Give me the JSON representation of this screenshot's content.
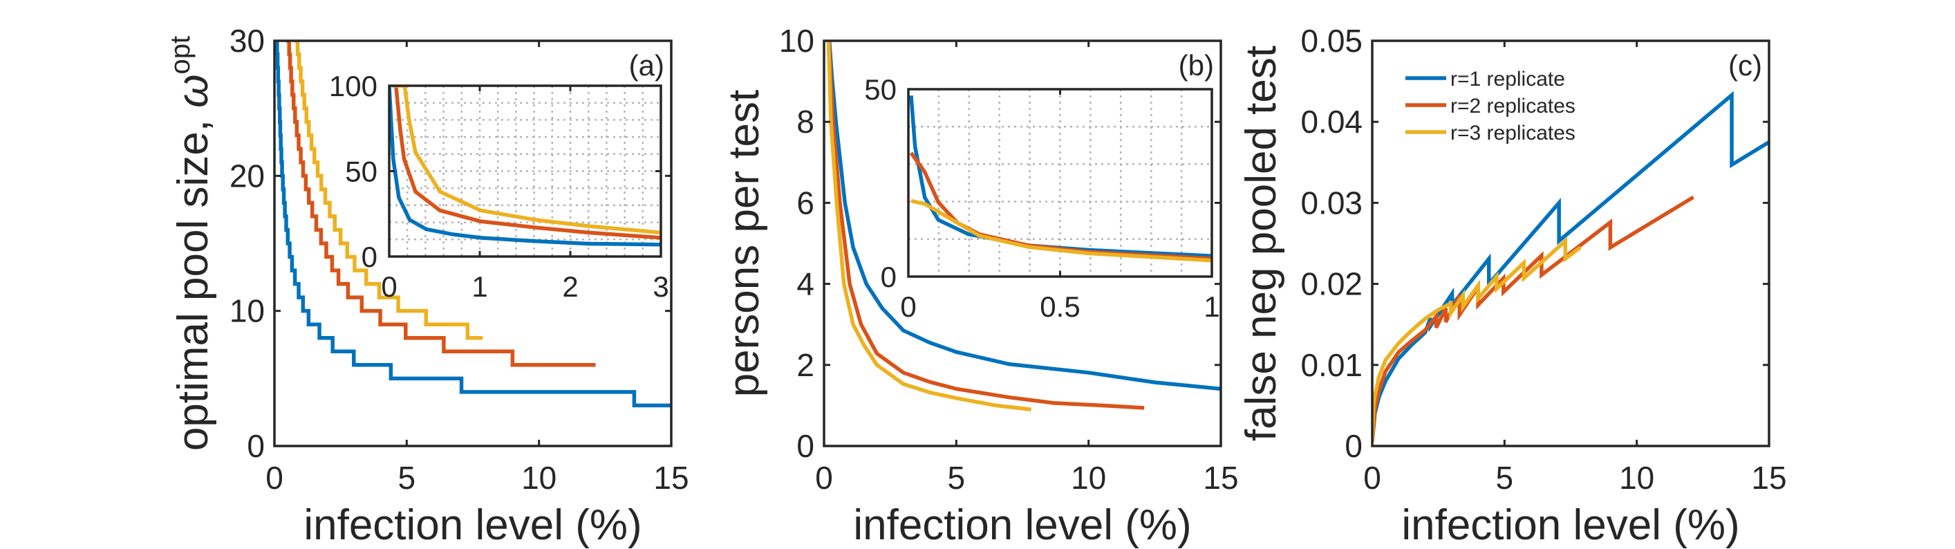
{
  "colors": {
    "r1": "#0072BD",
    "r2": "#D95319",
    "r3": "#EDB120",
    "axis": "#262626",
    "grid": "#b4b4b4"
  },
  "chart_data": [
    {
      "type": "line",
      "panel_label": "(a)",
      "xlabel": "infection level (%)",
      "ylabel": "optimal pool size, ",
      "ylabel_symbol": "ω",
      "ylabel_sup": "opt",
      "xlim": [
        0,
        15
      ],
      "ylim": [
        0,
        30
      ],
      "xticks": [
        0,
        5,
        10,
        15
      ],
      "yticks": [
        0,
        10,
        20,
        30
      ],
      "grid": false,
      "step_plot": true,
      "series": [
        {
          "color_key": "r1",
          "steps": [
            [
              0.08,
              30
            ],
            [
              0.1,
              29
            ],
            [
              0.12,
              28
            ],
            [
              0.14,
              27
            ],
            [
              0.16,
              26
            ],
            [
              0.18,
              25
            ],
            [
              0.202,
              24
            ],
            [
              0.219,
              23
            ],
            [
              0.239,
              22
            ],
            [
              0.262,
              21
            ],
            [
              0.288,
              20
            ],
            [
              0.318,
              19
            ],
            [
              0.354,
              18
            ],
            [
              0.395,
              17
            ],
            [
              0.444,
              16
            ],
            [
              0.504,
              15
            ],
            [
              0.576,
              14
            ],
            [
              0.664,
              13
            ],
            [
              0.774,
              12
            ],
            [
              0.915,
              11
            ],
            [
              1.08,
              10
            ],
            [
              1.29,
              9
            ],
            [
              1.7,
              8
            ],
            [
              2.2,
              7
            ],
            [
              3.0,
              6
            ],
            [
              4.4,
              5
            ],
            [
              7.07,
              4
            ],
            [
              13.6,
              3
            ],
            [
              15,
              3
            ]
          ]
        },
        {
          "color_key": "r2",
          "steps": [
            [
              0.52,
              30
            ],
            [
              0.555,
              29
            ],
            [
              0.59,
              28
            ],
            [
              0.63,
              27
            ],
            [
              0.675,
              26
            ],
            [
              0.725,
              25
            ],
            [
              0.78,
              24
            ],
            [
              0.845,
              23
            ],
            [
              0.915,
              22
            ],
            [
              0.995,
              21
            ],
            [
              1.085,
              20
            ],
            [
              1.185,
              19
            ],
            [
              1.3,
              18
            ],
            [
              1.43,
              17
            ],
            [
              1.58,
              16
            ],
            [
              1.76,
              15
            ],
            [
              1.96,
              14
            ],
            [
              2.18,
              13
            ],
            [
              2.42,
              12
            ],
            [
              2.78,
              11
            ],
            [
              3.3,
              10
            ],
            [
              4.0,
              9
            ],
            [
              4.96,
              8
            ],
            [
              6.4,
              7
            ],
            [
              9.0,
              6
            ],
            [
              12.14,
              6
            ]
          ]
        },
        {
          "color_key": "r3",
          "steps": [
            [
              0.83,
              30
            ],
            [
              0.88,
              29
            ],
            [
              0.935,
              28
            ],
            [
              0.995,
              27
            ],
            [
              1.06,
              26
            ],
            [
              1.13,
              25
            ],
            [
              1.21,
              24
            ],
            [
              1.3,
              23
            ],
            [
              1.4,
              22
            ],
            [
              1.51,
              21
            ],
            [
              1.635,
              20
            ],
            [
              1.77,
              19
            ],
            [
              1.92,
              18
            ],
            [
              2.09,
              17
            ],
            [
              2.28,
              16
            ],
            [
              2.5,
              15
            ],
            [
              2.75,
              14
            ],
            [
              3.03,
              13
            ],
            [
              3.47,
              12
            ],
            [
              3.96,
              11
            ],
            [
              4.68,
              10
            ],
            [
              5.73,
              9
            ],
            [
              7.3,
              8
            ],
            [
              7.87,
              8
            ]
          ]
        }
      ],
      "inset": {
        "xlim": [
          0,
          3
        ],
        "ylim": [
          0,
          100
        ],
        "xticks": [
          0,
          1,
          2,
          3
        ],
        "yticks": [
          0,
          50,
          100
        ],
        "grid": true,
        "grid_x_step": 0.2,
        "grid_y_step": 10,
        "series": [
          {
            "color_key": "r1",
            "points": [
              [
                0,
                100
              ],
              [
                0.02,
                80
              ],
              [
                0.045,
                57
              ],
              [
                0.106,
                34.6
              ],
              [
                0.226,
                21.5
              ],
              [
                0.41,
                16
              ],
              [
                0.7,
                13
              ],
              [
                1.01,
                11
              ],
              [
                1.61,
                9
              ],
              [
                2.2,
                7.5
              ],
              [
                3,
                7
              ]
            ]
          },
          {
            "color_key": "r2",
            "points": [
              [
                0.075,
                100
              ],
              [
                0.12,
                75
              ],
              [
                0.165,
                57
              ],
              [
                0.29,
                38
              ],
              [
                0.56,
                27
              ],
              [
                1.01,
                20.6
              ],
              [
                1.61,
                17
              ],
              [
                2.2,
                14
              ],
              [
                3,
                11
              ]
            ]
          },
          {
            "color_key": "r3",
            "points": [
              [
                0.03,
                100
              ],
              [
                0.17,
                100
              ],
              [
                0.22,
                80
              ],
              [
                0.29,
                61
              ],
              [
                0.56,
                38
              ],
              [
                1.01,
                27
              ],
              [
                1.61,
                21.5
              ],
              [
                2.2,
                17.8
              ],
              [
                3,
                14
              ]
            ]
          }
        ]
      }
    },
    {
      "type": "line",
      "panel_label": "(b)",
      "xlabel": "infection level (%)",
      "ylabel": "persons per test",
      "xlim": [
        0,
        15
      ],
      "ylim": [
        0,
        10
      ],
      "xticks": [
        0,
        5,
        10,
        15
      ],
      "yticks": [
        0,
        2,
        4,
        6,
        8,
        10
      ],
      "grid": false,
      "series": [
        {
          "color_key": "r1",
          "points": [
            [
              0.2,
              10
            ],
            [
              0.3,
              9.1
            ],
            [
              0.45,
              8
            ],
            [
              0.79,
              6
            ],
            [
              1.1,
              4.9
            ],
            [
              1.6,
              4.0
            ],
            [
              2.2,
              3.4
            ],
            [
              3,
              2.85
            ],
            [
              4,
              2.55
            ],
            [
              5,
              2.32
            ],
            [
              7,
              2.02
            ],
            [
              10,
              1.81
            ],
            [
              12.5,
              1.57
            ],
            [
              15,
              1.41
            ]
          ]
        },
        {
          "color_key": "r2",
          "points": [
            [
              0.18,
              10
            ],
            [
              0.34,
              8
            ],
            [
              0.6,
              6
            ],
            [
              0.97,
              4
            ],
            [
              1.4,
              3.0
            ],
            [
              2,
              2.28
            ],
            [
              3,
              1.81
            ],
            [
              4,
              1.58
            ],
            [
              5,
              1.41
            ],
            [
              7,
              1.2
            ],
            [
              8.7,
              1.06
            ],
            [
              10.5,
              1.0
            ],
            [
              12.1,
              0.94
            ]
          ]
        },
        {
          "color_key": "r3",
          "points": [
            [
              0.17,
              10
            ],
            [
              0.26,
              8
            ],
            [
              0.48,
              6
            ],
            [
              0.75,
              4
            ],
            [
              1.1,
              3.0
            ],
            [
              1.5,
              2.5
            ],
            [
              2,
              2.0
            ],
            [
              3,
              1.53
            ],
            [
              4,
              1.32
            ],
            [
              5,
              1.18
            ],
            [
              6.5,
              1.0
            ],
            [
              7.83,
              0.9
            ]
          ]
        }
      ],
      "inset": {
        "xlim": [
          0,
          1
        ],
        "ylim": [
          0,
          50
        ],
        "xticks": [
          0,
          0.5,
          1
        ],
        "yticks": [
          0,
          50
        ],
        "grid": true,
        "grid_x_step": 0.1,
        "grid_y_step": 10,
        "series": [
          {
            "color_key": "r1",
            "points": [
              [
                0.009,
                48.3
              ],
              [
                0.022,
                34.7
              ],
              [
                0.054,
                21.1
              ],
              [
                0.099,
                15.1
              ],
              [
                0.198,
                11.3
              ],
              [
                0.396,
                8.3
              ],
              [
                0.594,
                7.1
              ],
              [
                1.0,
                5.5
              ]
            ]
          },
          {
            "color_key": "r2",
            "points": [
              [
                0.009,
                33
              ],
              [
                0.054,
                27.9
              ],
              [
                0.099,
                19.8
              ],
              [
                0.162,
                14.3
              ],
              [
                0.234,
                11.3
              ],
              [
                0.396,
                8.3
              ],
              [
                0.594,
                6.6
              ],
              [
                1.0,
                4.8
              ]
            ]
          },
          {
            "color_key": "r3",
            "points": [
              [
                0.009,
                20.2
              ],
              [
                0.054,
                19.4
              ],
              [
                0.099,
                17.3
              ],
              [
                0.162,
                14.3
              ],
              [
                0.234,
                10.9
              ],
              [
                0.396,
                7.9
              ],
              [
                0.594,
                6.2
              ],
              [
                1.0,
                4.3
              ]
            ]
          }
        ]
      }
    },
    {
      "type": "line",
      "panel_label": "(c)",
      "xlabel": "infection level (%)",
      "ylabel": "false neg pooled test",
      "xlim": [
        0,
        15
      ],
      "ylim": [
        0,
        0.05
      ],
      "xticks": [
        0,
        5,
        10,
        15
      ],
      "yticks": [
        0,
        0.01,
        0.02,
        0.03,
        0.04,
        0.05
      ],
      "grid": false,
      "legend_position": "top-left",
      "series": [
        {
          "name": "r=1 replicate",
          "color_key": "r1",
          "points": [
            [
              0,
              0.0005
            ],
            [
              0.1,
              0.004
            ],
            [
              0.25,
              0.006
            ],
            [
              0.5,
              0.008
            ],
            [
              1,
              0.0108
            ],
            [
              1.5,
              0.0125
            ],
            [
              2,
              0.014
            ],
            [
              2.2,
              0.0158
            ],
            [
              2.2,
              0.0148
            ],
            [
              3.02,
              0.0188
            ],
            [
              3.02,
              0.0174
            ],
            [
              4.41,
              0.0231
            ],
            [
              4.41,
              0.02
            ],
            [
              7.06,
              0.03
            ],
            [
              7.06,
              0.0253
            ],
            [
              13.59,
              0.0433
            ],
            [
              13.59,
              0.0347
            ],
            [
              15,
              0.0375
            ]
          ]
        },
        {
          "name": "r=2 replicates",
          "color_key": "r2",
          "points": [
            [
              0,
              0.0005
            ],
            [
              0.1,
              0.0045
            ],
            [
              0.25,
              0.0068
            ],
            [
              0.5,
              0.0092
            ],
            [
              1,
              0.0116
            ],
            [
              1.5,
              0.013
            ],
            [
              2,
              0.0143
            ],
            [
              2.42,
              0.016
            ],
            [
              2.42,
              0.0146
            ],
            [
              2.78,
              0.017
            ],
            [
              2.78,
              0.0153
            ],
            [
              3.3,
              0.0186
            ],
            [
              3.3,
              0.0162
            ],
            [
              4.0,
              0.0196
            ],
            [
              4.0,
              0.0174
            ],
            [
              4.96,
              0.0207
            ],
            [
              4.96,
              0.019
            ],
            [
              6.4,
              0.0235
            ],
            [
              6.4,
              0.0211
            ],
            [
              9.0,
              0.0276
            ],
            [
              9.0,
              0.0245
            ],
            [
              12.14,
              0.0307
            ]
          ]
        },
        {
          "name": "r=3 replicates",
          "color_key": "r3",
          "points": [
            [
              0,
              0.0005
            ],
            [
              0.05,
              0.005
            ],
            [
              0.1,
              0.0062
            ],
            [
              0.25,
              0.0085
            ],
            [
              0.5,
              0.0106
            ],
            [
              1,
              0.0127
            ],
            [
              1.5,
              0.0143
            ],
            [
              2,
              0.0157
            ],
            [
              2.5,
              0.0168
            ],
            [
              2.97,
              0.0176
            ],
            [
              2.97,
              0.0164
            ],
            [
              3.43,
              0.0186
            ],
            [
              3.43,
              0.0172
            ],
            [
              4.0,
              0.0198
            ],
            [
              4.0,
              0.0182
            ],
            [
              4.7,
              0.0209
            ],
            [
              4.7,
              0.0194
            ],
            [
              5.73,
              0.0226
            ],
            [
              5.73,
              0.0207
            ],
            [
              7.3,
              0.0253
            ],
            [
              7.3,
              0.0231
            ],
            [
              7.87,
              0.0245
            ]
          ]
        }
      ]
    }
  ]
}
